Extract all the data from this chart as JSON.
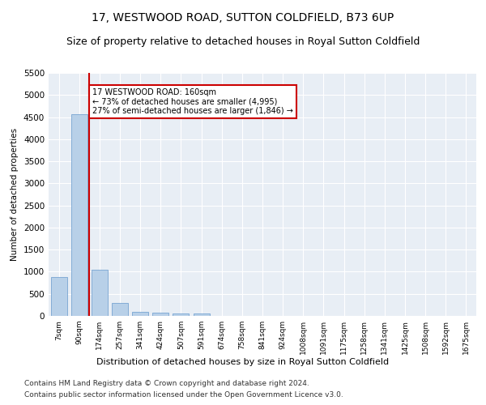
{
  "title": "17, WESTWOOD ROAD, SUTTON COLDFIELD, B73 6UP",
  "subtitle": "Size of property relative to detached houses in Royal Sutton Coldfield",
  "xlabel": "Distribution of detached houses by size in Royal Sutton Coldfield",
  "ylabel": "Number of detached properties",
  "footer_line1": "Contains HM Land Registry data © Crown copyright and database right 2024.",
  "footer_line2": "Contains public sector information licensed under the Open Government Licence v3.0.",
  "categories": [
    "7sqm",
    "90sqm",
    "174sqm",
    "257sqm",
    "341sqm",
    "424sqm",
    "507sqm",
    "591sqm",
    "674sqm",
    "758sqm",
    "841sqm",
    "924sqm",
    "1008sqm",
    "1091sqm",
    "1175sqm",
    "1258sqm",
    "1341sqm",
    "1425sqm",
    "1508sqm",
    "1592sqm",
    "1675sqm"
  ],
  "values": [
    880,
    4560,
    1050,
    290,
    85,
    75,
    50,
    50,
    0,
    0,
    0,
    0,
    0,
    0,
    0,
    0,
    0,
    0,
    0,
    0,
    0
  ],
  "bar_color": "#b8d0e8",
  "bar_edge_color": "#6699cc",
  "bar_edge_width": 0.5,
  "red_line_x": 1.5,
  "red_line_color": "#cc0000",
  "annotation_text": "17 WESTWOOD ROAD: 160sqm\n← 73% of detached houses are smaller (4,995)\n27% of semi-detached houses are larger (1,846) →",
  "annotation_box_color": "#ffffff",
  "annotation_box_edge_color": "#cc0000",
  "ylim": [
    0,
    5500
  ],
  "yticks": [
    0,
    500,
    1000,
    1500,
    2000,
    2500,
    3000,
    3500,
    4000,
    4500,
    5000,
    5500
  ],
  "background_color": "#e8eef5",
  "title_fontsize": 10,
  "subtitle_fontsize": 9,
  "footer_fontsize": 6.5
}
